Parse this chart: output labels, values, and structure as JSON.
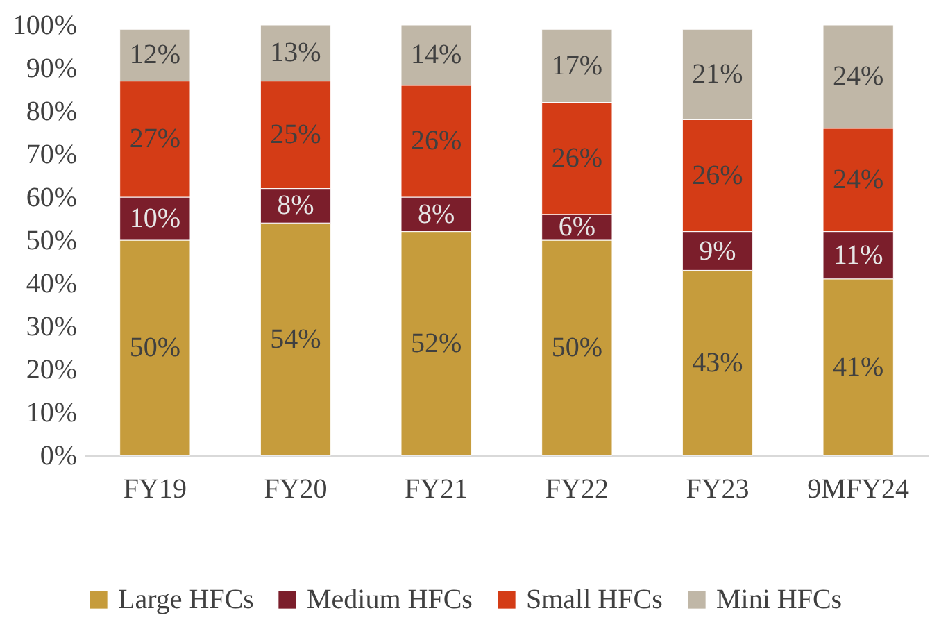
{
  "chart_data": {
    "type": "bar",
    "stacked": true,
    "categories": [
      "FY19",
      "FY20",
      "FY21",
      "FY22",
      "FY23",
      "9MFY24"
    ],
    "series": [
      {
        "name": "Large HFCs",
        "color": "#c69c3c",
        "values": [
          50,
          54,
          52,
          50,
          43,
          41
        ],
        "value_labels": [
          "50%",
          "54%",
          "52%",
          "50%",
          "43%",
          "41%"
        ]
      },
      {
        "name": "Medium HFCs",
        "color": "#7b1e2b",
        "values": [
          10,
          8,
          8,
          6,
          9,
          11
        ],
        "value_labels": [
          "10%",
          "8%",
          "8%",
          "6%",
          "9%",
          "11%"
        ]
      },
      {
        "name": "Small HFCs",
        "color": "#d43c16",
        "values": [
          27,
          25,
          26,
          26,
          26,
          24
        ],
        "value_labels": [
          "27%",
          "25%",
          "26%",
          "26%",
          "26%",
          "24%"
        ]
      },
      {
        "name": "Mini HFCs",
        "color": "#c0b7a7",
        "values": [
          12,
          13,
          14,
          17,
          21,
          24
        ],
        "value_labels": [
          "12%",
          "13%",
          "14%",
          "17%",
          "21%",
          "24%"
        ]
      }
    ],
    "ylim": [
      0,
      100
    ],
    "yticks": [
      {
        "value": 0,
        "label": "0%"
      },
      {
        "value": 10,
        "label": "10%"
      },
      {
        "value": 20,
        "label": "20%"
      },
      {
        "value": 30,
        "label": "30%"
      },
      {
        "value": 40,
        "label": "40%"
      },
      {
        "value": 50,
        "label": "50%"
      },
      {
        "value": 60,
        "label": "60%"
      },
      {
        "value": 70,
        "label": "70%"
      },
      {
        "value": 80,
        "label": "80%"
      },
      {
        "value": 90,
        "label": "90%"
      },
      {
        "value": 100,
        "label": "100%"
      }
    ],
    "grid": false,
    "legend": "bottom"
  }
}
